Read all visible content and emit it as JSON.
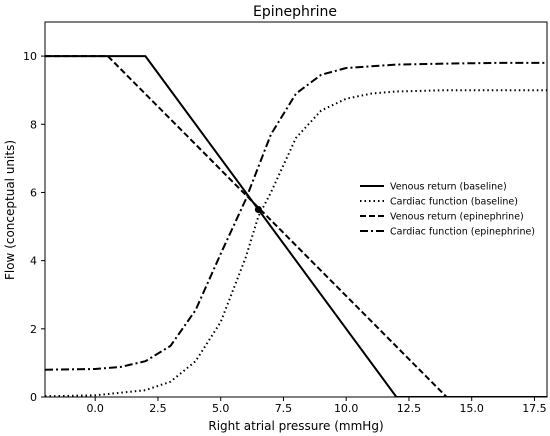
{
  "chart_data": {
    "type": "line",
    "title": "Epinephrine",
    "xlabel": "Right atrial pressure (mmHg)",
    "ylabel": "Flow (conceptual units)",
    "xlim": [
      -2,
      18
    ],
    "ylim": [
      0,
      11
    ],
    "xticks": [
      "0.0",
      "2.5",
      "5.0",
      "7.5",
      "10.0",
      "12.5",
      "15.0",
      "17.5"
    ],
    "xtick_values": [
      0,
      2.5,
      5,
      7.5,
      10,
      12.5,
      15,
      17.5
    ],
    "yticks": [
      "0",
      "2",
      "4",
      "6",
      "8",
      "10"
    ],
    "ytick_values": [
      0,
      2,
      4,
      6,
      8,
      10
    ],
    "grid": false,
    "legend_position": "center-right",
    "series": [
      {
        "name": "Venous return (baseline)",
        "style": "solid",
        "x": [
          -2,
          2,
          12,
          18
        ],
        "y": [
          10,
          10,
          0,
          0
        ]
      },
      {
        "name": "Cardiac function (baseline)",
        "style": "dotted",
        "x": [
          -2,
          0,
          2,
          3,
          4,
          5,
          6,
          6.5,
          7,
          8,
          9,
          10,
          11,
          12,
          14,
          16,
          18
        ],
        "y": [
          0.02,
          0.05,
          0.2,
          0.45,
          1.05,
          2.2,
          4.1,
          5.3,
          6.0,
          7.6,
          8.4,
          8.75,
          8.9,
          8.96,
          9.0,
          9.0,
          9.0
        ]
      },
      {
        "name": "Venous return (epinephrine)",
        "style": "dashed",
        "x": [
          -2,
          0.5,
          14,
          18
        ],
        "y": [
          10,
          10,
          0,
          0
        ]
      },
      {
        "name": "Cardiac function (epinephrine)",
        "style": "dashdot",
        "x": [
          -2,
          0,
          1,
          2,
          3,
          4,
          5,
          5.5,
          6,
          7,
          8,
          9,
          10,
          12,
          14,
          16,
          18
        ],
        "y": [
          0.8,
          0.82,
          0.88,
          1.05,
          1.5,
          2.55,
          4.2,
          5.0,
          5.8,
          7.7,
          8.9,
          9.45,
          9.65,
          9.75,
          9.78,
          9.8,
          9.8
        ]
      }
    ],
    "intersection_marker": {
      "x": 6.5,
      "y": 5.5
    }
  }
}
